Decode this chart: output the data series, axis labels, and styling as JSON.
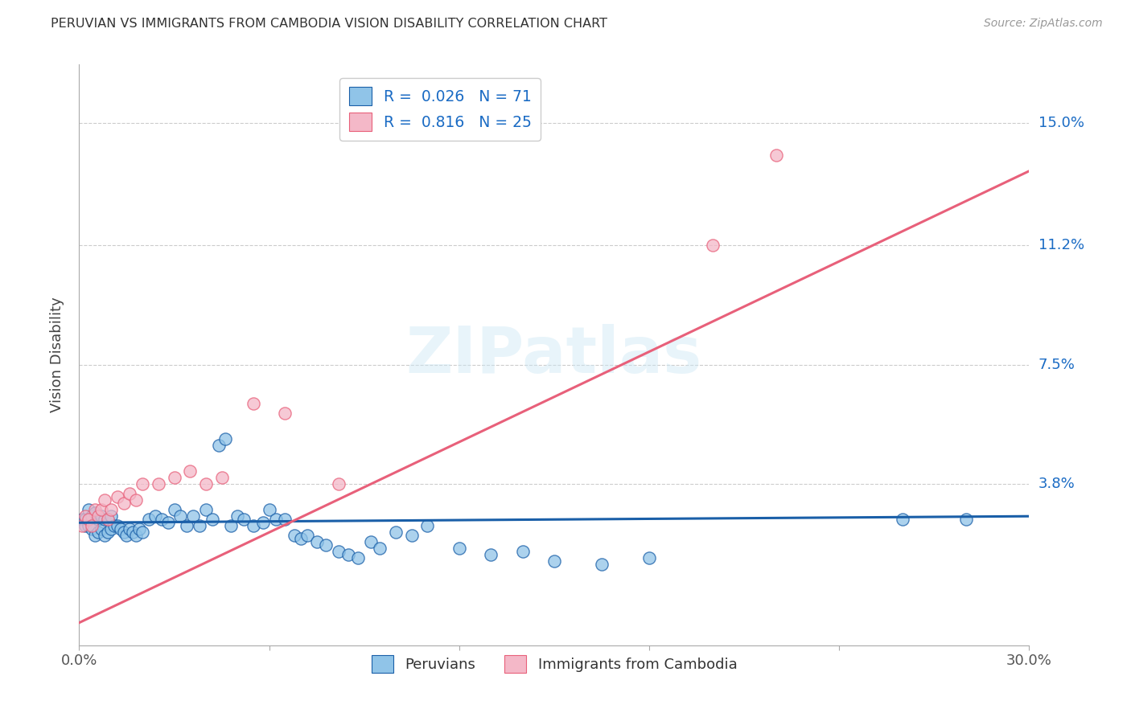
{
  "title": "PERUVIAN VS IMMIGRANTS FROM CAMBODIA VISION DISABILITY CORRELATION CHART",
  "source": "Source: ZipAtlas.com",
  "ylabel": "Vision Disability",
  "ytick_labels": [
    "15.0%",
    "11.2%",
    "7.5%",
    "3.8%"
  ],
  "ytick_values": [
    0.15,
    0.112,
    0.075,
    0.038
  ],
  "xlim": [
    0.0,
    0.3
  ],
  "ylim": [
    -0.012,
    0.168
  ],
  "watermark": "ZIPatlas",
  "blue_color": "#90c4e8",
  "pink_color": "#f4b8c8",
  "blue_line_color": "#1a5fa8",
  "pink_line_color": "#e8607a",
  "legend_R_blue": "0.026",
  "legend_N_blue": "71",
  "legend_R_pink": "0.816",
  "legend_N_pink": "25",
  "blue_line_x": [
    0.0,
    0.3
  ],
  "blue_line_y": [
    0.026,
    0.028
  ],
  "pink_line_x": [
    0.0,
    0.3
  ],
  "pink_line_y": [
    -0.005,
    0.135
  ],
  "blue_scatter_x": [
    0.001,
    0.002,
    0.002,
    0.003,
    0.003,
    0.004,
    0.004,
    0.005,
    0.005,
    0.006,
    0.006,
    0.007,
    0.007,
    0.008,
    0.008,
    0.009,
    0.009,
    0.01,
    0.01,
    0.011,
    0.012,
    0.013,
    0.014,
    0.015,
    0.016,
    0.017,
    0.018,
    0.019,
    0.02,
    0.022,
    0.024,
    0.026,
    0.028,
    0.03,
    0.032,
    0.034,
    0.036,
    0.038,
    0.04,
    0.042,
    0.044,
    0.046,
    0.048,
    0.05,
    0.052,
    0.055,
    0.058,
    0.06,
    0.062,
    0.065,
    0.068,
    0.07,
    0.072,
    0.075,
    0.078,
    0.082,
    0.085,
    0.088,
    0.092,
    0.095,
    0.1,
    0.105,
    0.11,
    0.12,
    0.13,
    0.14,
    0.15,
    0.165,
    0.18,
    0.26,
    0.28
  ],
  "blue_scatter_y": [
    0.027,
    0.027,
    0.025,
    0.03,
    0.025,
    0.028,
    0.024,
    0.029,
    0.022,
    0.027,
    0.023,
    0.028,
    0.024,
    0.027,
    0.022,
    0.027,
    0.023,
    0.028,
    0.024,
    0.025,
    0.025,
    0.024,
    0.023,
    0.022,
    0.024,
    0.023,
    0.022,
    0.024,
    0.023,
    0.027,
    0.028,
    0.027,
    0.026,
    0.03,
    0.028,
    0.025,
    0.028,
    0.025,
    0.03,
    0.027,
    0.05,
    0.052,
    0.025,
    0.028,
    0.027,
    0.025,
    0.026,
    0.03,
    0.027,
    0.027,
    0.022,
    0.021,
    0.022,
    0.02,
    0.019,
    0.017,
    0.016,
    0.015,
    0.02,
    0.018,
    0.023,
    0.022,
    0.025,
    0.018,
    0.016,
    0.017,
    0.014,
    0.013,
    0.015,
    0.027,
    0.027
  ],
  "pink_scatter_x": [
    0.001,
    0.002,
    0.003,
    0.004,
    0.005,
    0.006,
    0.007,
    0.008,
    0.009,
    0.01,
    0.012,
    0.014,
    0.016,
    0.018,
    0.02,
    0.025,
    0.03,
    0.035,
    0.04,
    0.045,
    0.055,
    0.065,
    0.082,
    0.2,
    0.22
  ],
  "pink_scatter_y": [
    0.025,
    0.028,
    0.027,
    0.025,
    0.03,
    0.028,
    0.03,
    0.033,
    0.027,
    0.03,
    0.034,
    0.032,
    0.035,
    0.033,
    0.038,
    0.038,
    0.04,
    0.042,
    0.038,
    0.04,
    0.063,
    0.06,
    0.038,
    0.112,
    0.14
  ]
}
